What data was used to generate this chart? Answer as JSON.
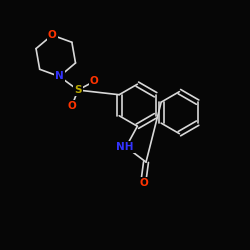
{
  "background_color": "#060606",
  "bond_color": "#d8d8d8",
  "atom_colors": {
    "N": "#3333ff",
    "O": "#ff3300",
    "S": "#bbaa00",
    "NH": "#3333ff"
  },
  "figsize": [
    2.5,
    2.5
  ],
  "dpi": 100
}
